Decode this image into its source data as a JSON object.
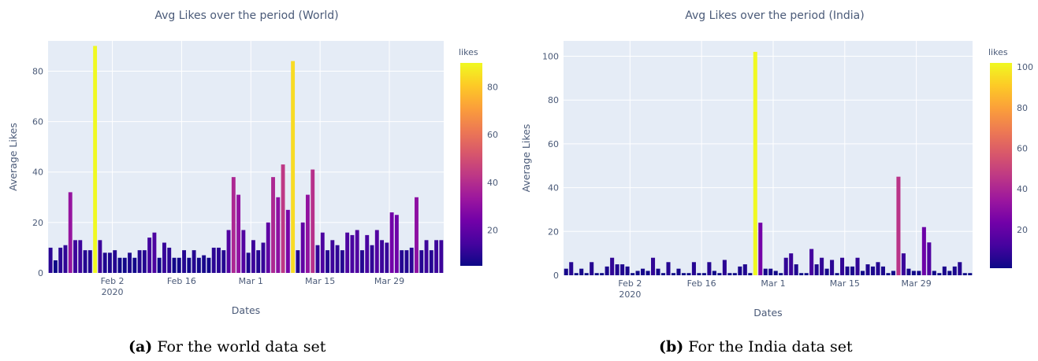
{
  "chart_data": [
    {
      "type": "bar",
      "title": "Avg Likes over the period (World)",
      "xlabel": "Dates",
      "ylabel": "Average Likes",
      "x_ticks": [
        {
          "date": "2020-02-02",
          "label": "Feb 2",
          "sublabel": "2020"
        },
        {
          "date": "2020-02-16",
          "label": "Feb 16",
          "sublabel": ""
        },
        {
          "date": "2020-03-01",
          "label": "Mar 1",
          "sublabel": ""
        },
        {
          "date": "2020-03-15",
          "label": "Mar 15",
          "sublabel": ""
        },
        {
          "date": "2020-03-29",
          "label": "Mar 29",
          "sublabel": ""
        }
      ],
      "y_ticks": [
        0,
        20,
        40,
        60,
        80
      ],
      "xlim": [
        "2020-01-20",
        "2020-04-09"
      ],
      "ylim": [
        0,
        92
      ],
      "colorbar": {
        "title": "likes",
        "range": [
          5,
          90
        ],
        "ticks": [
          20,
          40,
          60,
          80
        ]
      },
      "colorscale": [
        "#0d0887",
        "#46039f",
        "#7201a8",
        "#9c179e",
        "#bd3786",
        "#d8576b",
        "#ed7953",
        "#fb9f3a",
        "#fdca26",
        "#f0f921"
      ],
      "start_date": "2020-01-20",
      "values": [
        10,
        5,
        10,
        11,
        32,
        13,
        13,
        9,
        9,
        90,
        13,
        8,
        8,
        9,
        6,
        6,
        8,
        6,
        9,
        9,
        14,
        16,
        6,
        12,
        10,
        6,
        6,
        9,
        6,
        9,
        6,
        7,
        6,
        10,
        10,
        9,
        17,
        38,
        31,
        17,
        8,
        13,
        9,
        12,
        20,
        38,
        30,
        43,
        25,
        84,
        9,
        20,
        31,
        41,
        11,
        16,
        9,
        13,
        11,
        9,
        16,
        15,
        17,
        9,
        15,
        11,
        17,
        13,
        12,
        24,
        23,
        9,
        9,
        10,
        30,
        9,
        13,
        9,
        13,
        13
      ]
    },
    {
      "type": "bar",
      "title": "Avg Likes over the period (India)",
      "xlabel": "Dates",
      "ylabel": "Average Likes",
      "x_ticks": [
        {
          "date": "2020-02-02",
          "label": "Feb 2",
          "sublabel": "2020"
        },
        {
          "date": "2020-02-16",
          "label": "Feb 16",
          "sublabel": ""
        },
        {
          "date": "2020-03-01",
          "label": "Mar 1",
          "sublabel": ""
        },
        {
          "date": "2020-03-15",
          "label": "Mar 15",
          "sublabel": ""
        },
        {
          "date": "2020-03-29",
          "label": "Mar 29",
          "sublabel": ""
        }
      ],
      "y_ticks": [
        0,
        20,
        40,
        60,
        80,
        100
      ],
      "xlim": [
        "2020-01-20",
        "2020-04-09"
      ],
      "ylim": [
        0,
        107
      ],
      "colorbar": {
        "title": "likes",
        "range": [
          1,
          102
        ],
        "ticks": [
          20,
          40,
          60,
          80,
          100
        ]
      },
      "colorscale": [
        "#0d0887",
        "#46039f",
        "#7201a8",
        "#9c179e",
        "#bd3786",
        "#d8576b",
        "#ed7953",
        "#fb9f3a",
        "#fdca26",
        "#f0f921"
      ],
      "start_date": "2020-01-20",
      "values": [
        3,
        6,
        1,
        3,
        1,
        6,
        1,
        1,
        4,
        8,
        5,
        5,
        4,
        1,
        2,
        3,
        2,
        8,
        3,
        1,
        6,
        1,
        3,
        1,
        1,
        6,
        1,
        1,
        6,
        2,
        1,
        7,
        1,
        1,
        4,
        5,
        1,
        102,
        24,
        3,
        3,
        2,
        1,
        8,
        10,
        5,
        1,
        1,
        12,
        5,
        8,
        3,
        7,
        1,
        8,
        4,
        4,
        8,
        2,
        5,
        4,
        6,
        4,
        1,
        2,
        45,
        10,
        3,
        2,
        2,
        22,
        15,
        2,
        1,
        4,
        2,
        4,
        6,
        1,
        1
      ]
    }
  ],
  "captions": [
    {
      "letter": "(a)",
      "text": " For the world data set"
    },
    {
      "letter": "(b)",
      "text": " For the India data set"
    }
  ]
}
